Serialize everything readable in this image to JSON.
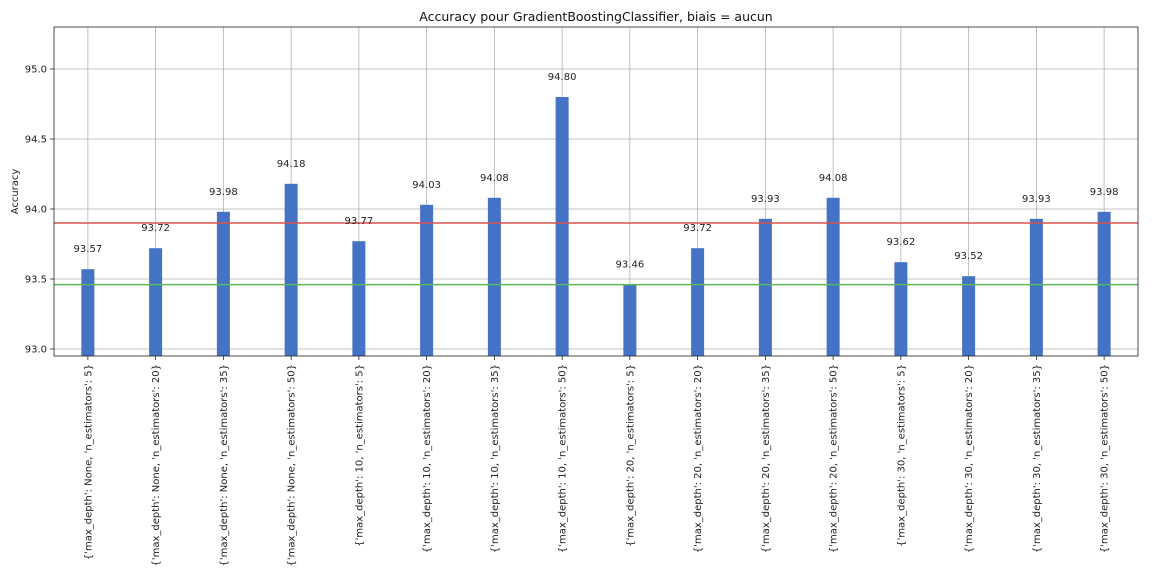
{
  "chart_data": {
    "type": "bar",
    "title": "Accuracy pour GradientBoostingClassifier, biais = aucun",
    "xlabel": "",
    "ylabel": "Accuracy",
    "ylim": [
      92.95,
      95.3
    ],
    "yticks": [
      93.0,
      93.5,
      94.0,
      94.5,
      95.0
    ],
    "ytick_labels": [
      "93.0",
      "93.5",
      "94.0",
      "94.5",
      "95.0"
    ],
    "grid": true,
    "bar_color": "#4472c4",
    "categories": [
      "{'max_depth': None, 'n_estimators': 5}",
      "{'max_depth': None, 'n_estimators': 20}",
      "{'max_depth': None, 'n_estimators': 35}",
      "{'max_depth': None, 'n_estimators': 50}",
      "{'max_depth': 10, 'n_estimators': 5}",
      "{'max_depth': 10, 'n_estimators': 20}",
      "{'max_depth': 10, 'n_estimators': 35}",
      "{'max_depth': 10, 'n_estimators': 50}",
      "{'max_depth': 20, 'n_estimators': 5}",
      "{'max_depth': 20, 'n_estimators': 20}",
      "{'max_depth': 20, 'n_estimators': 35}",
      "{'max_depth': 20, 'n_estimators': 50}",
      "{'max_depth': 30, 'n_estimators': 5}",
      "{'max_depth': 30, 'n_estimators': 20}",
      "{'max_depth': 30, 'n_estimators': 35}",
      "{'max_depth': 30, 'n_estimators': 50}"
    ],
    "values": [
      93.57,
      93.72,
      93.98,
      94.18,
      93.77,
      94.03,
      94.08,
      94.8,
      93.46,
      93.72,
      93.93,
      94.08,
      93.62,
      93.52,
      93.93,
      93.98
    ],
    "value_labels": [
      "93.57",
      "93.72",
      "93.98",
      "94.18",
      "93.77",
      "94.03",
      "94.08",
      "94.80",
      "93.46",
      "93.72",
      "93.93",
      "94.08",
      "93.62",
      "93.52",
      "93.93",
      "93.98"
    ],
    "reference_lines": [
      {
        "value": 93.9,
        "color": "#d9534f"
      },
      {
        "value": 93.46,
        "color": "#5cb85c"
      }
    ]
  }
}
